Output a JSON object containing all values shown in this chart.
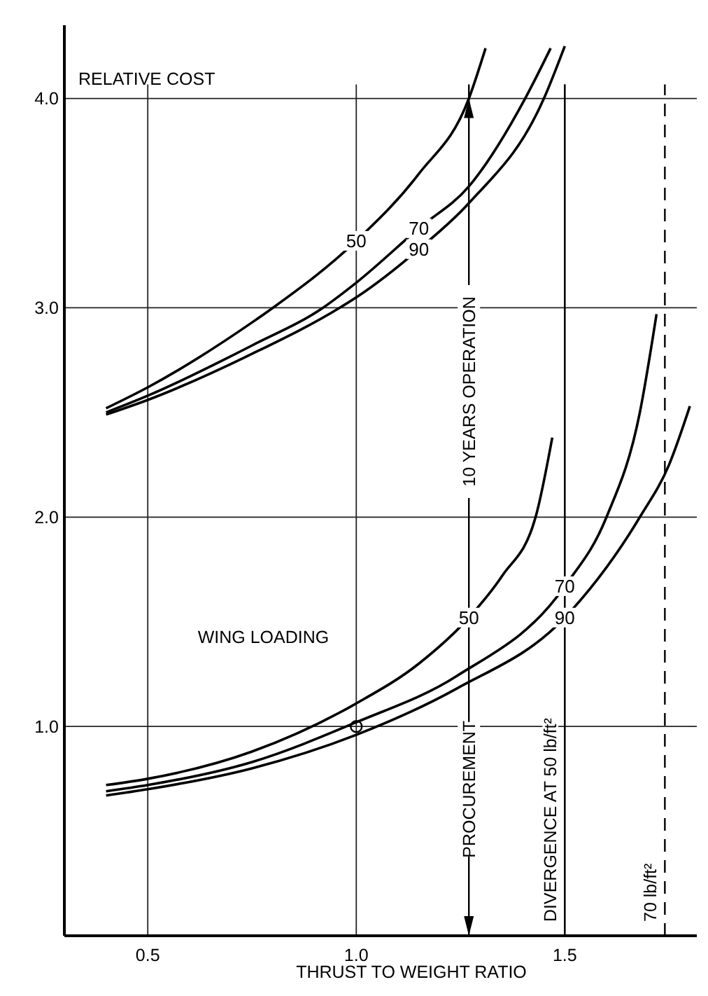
{
  "chart_data": {
    "type": "line",
    "ylabel": "RELATIVE COST",
    "xlabel": "THRUST TO WEIGHT RATIO",
    "xlim": [
      0.3,
      1.83
    ],
    "ylim": [
      0,
      4.35
    ],
    "xticks": [
      {
        "value": 0.5,
        "label": "0.5"
      },
      {
        "value": 1.0,
        "label": "1.0"
      },
      {
        "value": 1.5,
        "label": "1.5"
      }
    ],
    "yticks": [
      {
        "value": 1,
        "label": "1.0"
      },
      {
        "value": 2,
        "label": "2.0"
      },
      {
        "value": 3,
        "label": "3.0"
      },
      {
        "value": 4,
        "label": "4.0"
      }
    ],
    "grid": true,
    "marker": "none",
    "line_style": "solid",
    "series": [
      {
        "name": "50",
        "color": "#000000",
        "x": [
          0.4,
          0.5,
          0.75,
          0.8,
          1.0,
          1.15,
          1.27,
          1.31
        ],
        "values": [
          2.52,
          2.62,
          2.93,
          3.0,
          3.32,
          3.64,
          4.0,
          4.24
        ]
      },
      {
        "name": "70",
        "color": "#000000",
        "x": [
          0.4,
          0.5,
          0.75,
          0.92,
          1.0,
          1.15,
          1.27,
          1.405,
          1.466
        ],
        "values": [
          2.5,
          2.58,
          2.82,
          3.0,
          3.12,
          3.38,
          3.58,
          4.0,
          4.24
        ]
      },
      {
        "name": "90",
        "color": "#000000",
        "x": [
          0.4,
          0.5,
          0.75,
          0.96,
          1.0,
          1.15,
          1.27,
          1.45,
          1.5
        ],
        "values": [
          2.49,
          2.56,
          2.78,
          3.0,
          3.05,
          3.28,
          3.5,
          4.0,
          4.25
        ]
      },
      {
        "name": "50",
        "color": "#000000",
        "x": [
          0.4,
          0.5,
          0.75,
          1.0,
          1.15,
          1.27,
          1.35,
          1.43,
          1.47
        ],
        "values": [
          0.72,
          0.75,
          0.88,
          1.11,
          1.3,
          1.52,
          1.72,
          2.0,
          2.38
        ]
      },
      {
        "name": "70",
        "color": "#000000",
        "x": [
          0.4,
          0.5,
          0.75,
          1.0,
          1.24,
          1.5,
          1.6,
          1.68,
          1.72
        ],
        "values": [
          0.69,
          0.72,
          0.83,
          1.02,
          1.24,
          1.67,
          2.0,
          2.5,
          2.97
        ]
      },
      {
        "name": "90",
        "color": "#000000",
        "x": [
          0.4,
          0.5,
          0.75,
          1.0,
          1.24,
          1.5,
          1.68,
          1.75,
          1.8
        ],
        "values": [
          0.67,
          0.7,
          0.8,
          0.96,
          1.18,
          1.52,
          2.0,
          2.25,
          2.53
        ]
      },
      {
        "type": "scatter",
        "marker": "circle",
        "color": "#000000",
        "x": [
          1.0
        ],
        "values": [
          1.0
        ]
      }
    ],
    "ref_lines": [
      {
        "axis": "x",
        "value": 1.5,
        "label": "DIVERGENCE AT 50 lb/ft²",
        "line_style": "solid"
      },
      {
        "axis": "x",
        "value": 1.74,
        "label": "70 lb/ft²",
        "line_style": "dashed"
      },
      {
        "axis": "x",
        "value": 1.27,
        "line_style": "solid"
      }
    ],
    "annotations": [
      {
        "text": "10 YEARS OPERATION",
        "x": 1.27,
        "y": 2.6
      },
      {
        "text": "PROCUREMENT",
        "x": 1.27,
        "y": 0.7
      },
      "WING LOADING"
    ]
  }
}
